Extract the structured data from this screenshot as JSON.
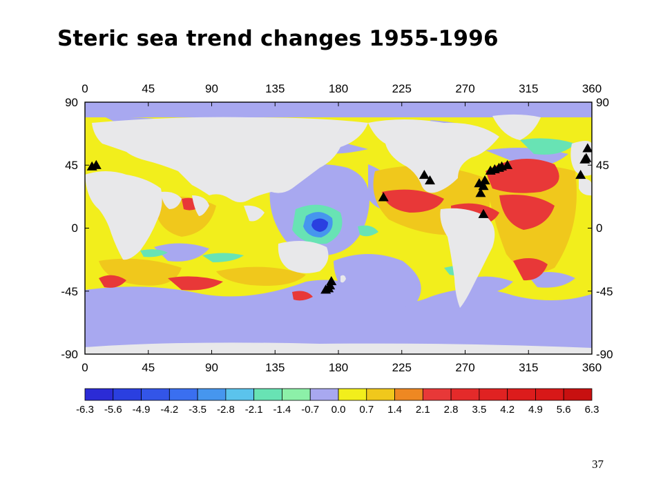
{
  "slide": {
    "title": "Steric sea trend changes 1955-1996",
    "page_number": "37"
  },
  "map": {
    "top_axis_labels": [
      "0",
      "45",
      "90",
      "135",
      "180",
      "225",
      "270",
      "315",
      "360"
    ],
    "bottom_axis_labels": [
      "0",
      "45",
      "90",
      "135",
      "180",
      "225",
      "270",
      "315",
      "360"
    ],
    "left_axis_labels": [
      "90",
      "45",
      "0",
      "-45",
      "-90"
    ],
    "right_axis_labels": [
      "90",
      "45",
      "0",
      "-45",
      "-90"
    ],
    "colors": {
      "land": "#e8e8ea",
      "background_ocean": "#f2ee1c",
      "frame": "#000000"
    },
    "colorbar": {
      "labels": [
        "-6.3",
        "-5.6",
        "-4.9",
        "-4.2",
        "-3.5",
        "-2.8",
        "-2.1",
        "-1.4",
        "-0.7",
        "0.0",
        "0.7",
        "1.4",
        "2.1",
        "2.8",
        "3.5",
        "4.2",
        "4.9",
        "5.6",
        "6.3"
      ],
      "colors": [
        "#2b2bd6",
        "#2a3fe0",
        "#3355e8",
        "#3a6ff0",
        "#4696ee",
        "#5bc3ec",
        "#68e3b4",
        "#8cf0a8",
        "#a8a8f0",
        "#f2ee1c",
        "#f0c81c",
        "#ee8822",
        "#e83838",
        "#e42a2a",
        "#e02222",
        "#dc1c1c",
        "#d81818",
        "#c81010"
      ]
    },
    "markers": {
      "symbol": "triangle",
      "color": "#000000",
      "locations": [
        {
          "lon": 5,
          "lat": 44
        },
        {
          "lon": 8,
          "lat": 45
        },
        {
          "lon": 212,
          "lat": 22
        },
        {
          "lon": 241,
          "lat": 38
        },
        {
          "lon": 245,
          "lat": 34
        },
        {
          "lon": 175,
          "lat": -38
        },
        {
          "lon": 174,
          "lat": -41
        },
        {
          "lon": 171,
          "lat": -44
        },
        {
          "lon": 173,
          "lat": -43
        },
        {
          "lon": 280,
          "lat": 32
        },
        {
          "lon": 283,
          "lat": 30
        },
        {
          "lon": 284,
          "lat": 34
        },
        {
          "lon": 281,
          "lat": 25
        },
        {
          "lon": 283,
          "lat": 10
        },
        {
          "lon": 288,
          "lat": 41
        },
        {
          "lon": 291,
          "lat": 42
        },
        {
          "lon": 294,
          "lat": 43
        },
        {
          "lon": 300,
          "lat": 45
        },
        {
          "lon": 296,
          "lat": 44
        },
        {
          "lon": 352,
          "lat": 38
        },
        {
          "lon": 355,
          "lat": 49
        },
        {
          "lon": 357,
          "lat": 57
        },
        {
          "lon": 356,
          "lat": 50
        }
      ]
    }
  }
}
